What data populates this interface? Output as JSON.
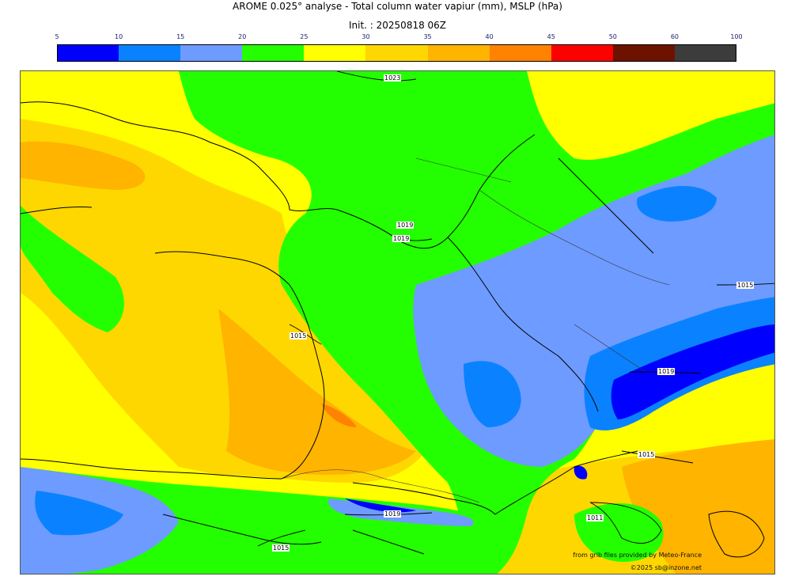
{
  "title": "AROME 0.025° analyse - Total column water vapiur (mm), MSLP (hPa)",
  "init": "Init. : 20250818 06Z",
  "colorbar": {
    "ticks": [
      "5",
      "10",
      "15",
      "20",
      "25",
      "30",
      "35",
      "40",
      "45",
      "50",
      "60",
      "100"
    ],
    "colors": [
      "#0000ff",
      "#0a82ff",
      "#6e9bff",
      "#23ff00",
      "#ffff00",
      "#ffd700",
      "#ffb400",
      "#ff8200",
      "#ff0000",
      "#6e1200",
      "#3c3c3c"
    ]
  },
  "isobars": [
    "1023",
    "1019",
    "1019",
    "1015",
    "1015",
    "1019",
    "1015",
    "1019",
    "1011",
    "1015"
  ],
  "credits": {
    "source": "from grib files provided by Meteo-France",
    "copyright": "©2025 sb@inzone.net"
  }
}
